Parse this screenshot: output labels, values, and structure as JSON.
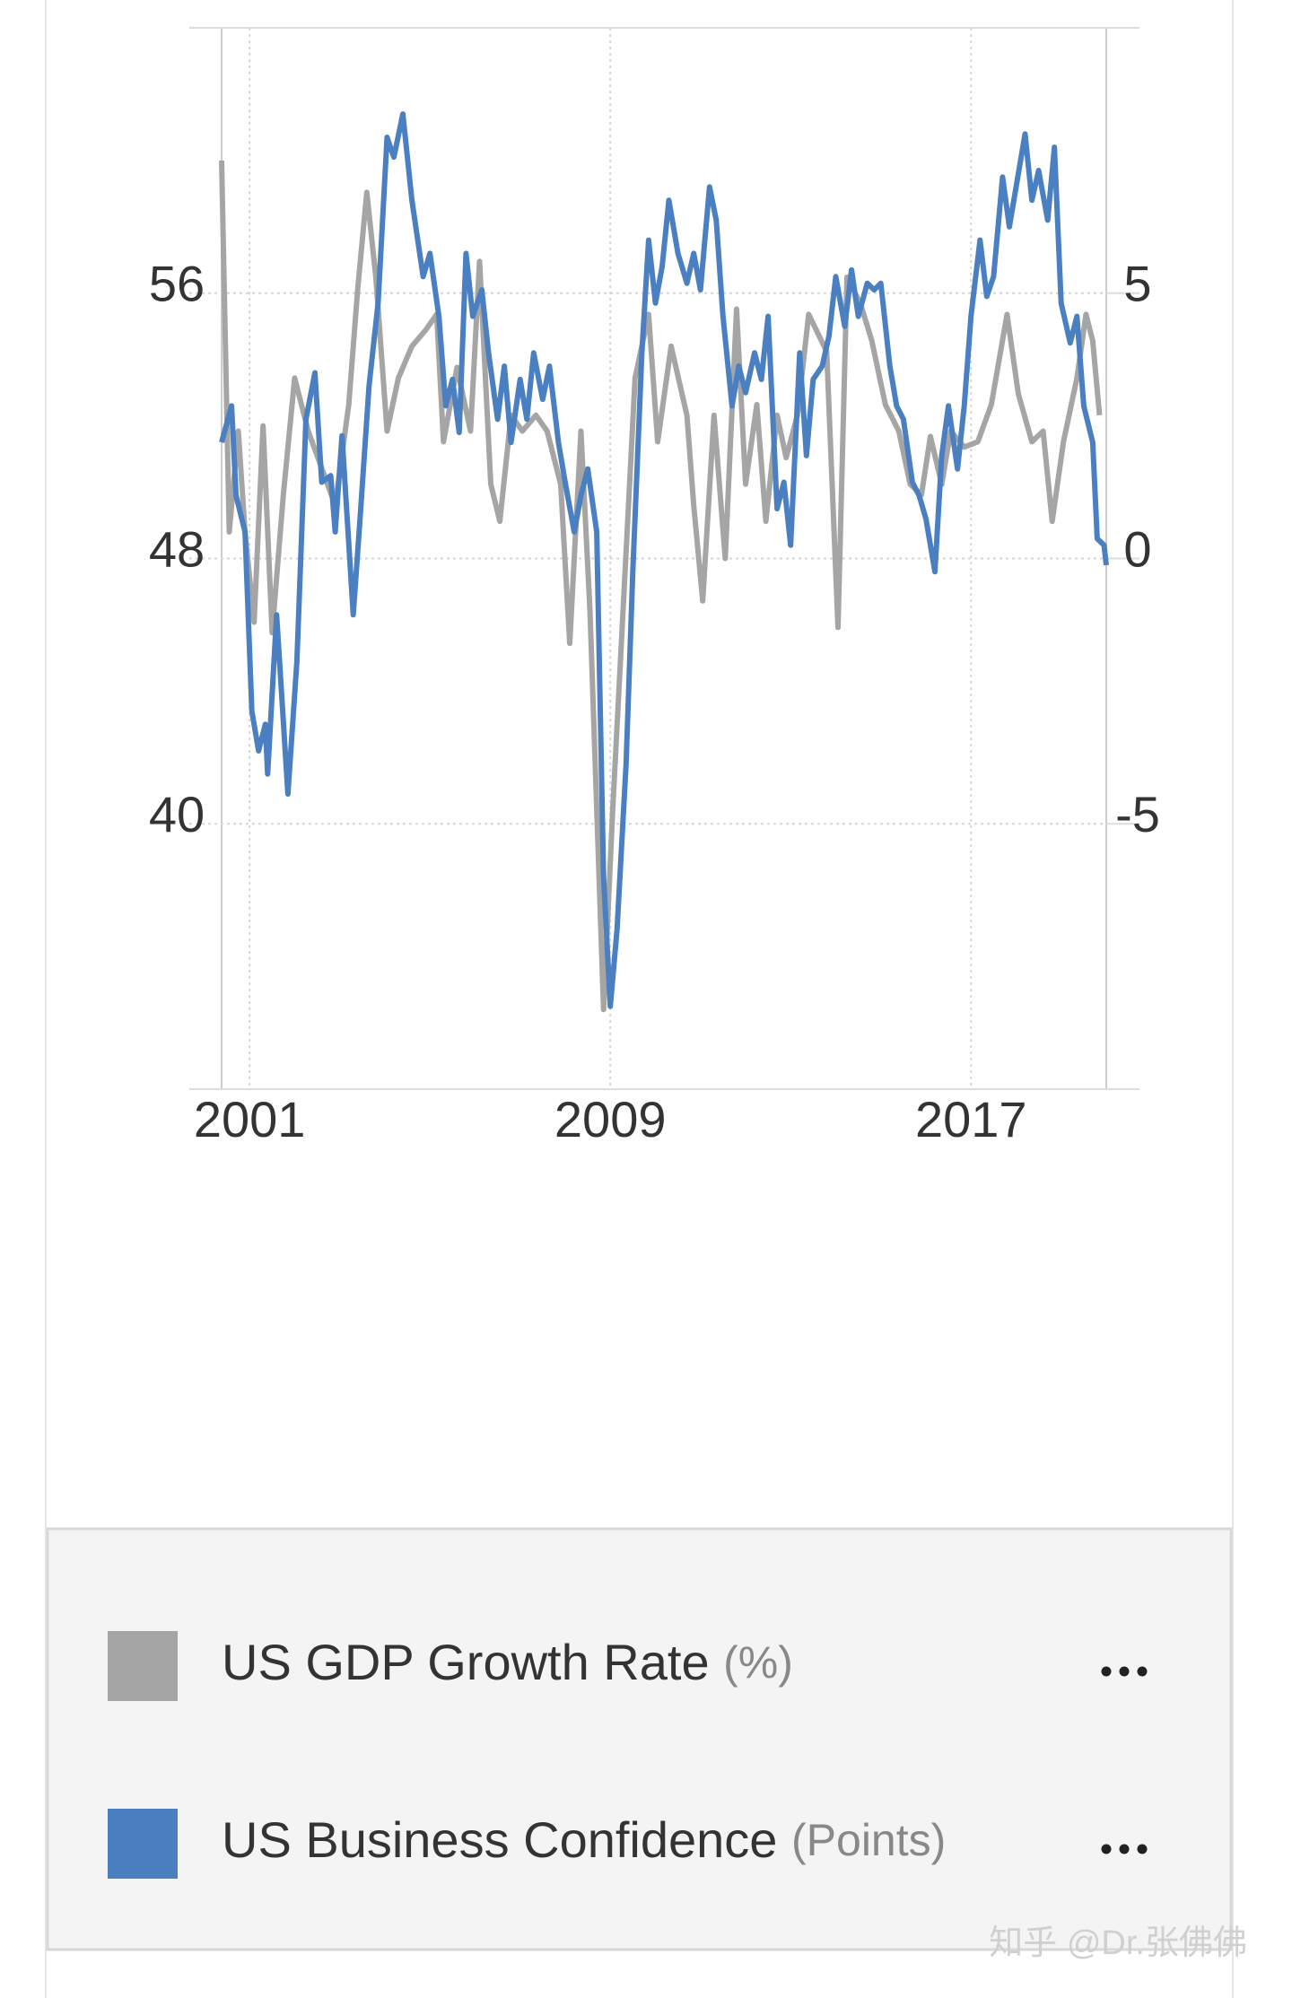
{
  "chart_data": {
    "type": "line",
    "xlim": [
      2000.38,
      2020.0
    ],
    "xticks": [
      2001,
      2009,
      2017
    ],
    "ylim": [
      32,
      64
    ],
    "yticks": [
      40,
      48,
      56
    ],
    "y2lim": [
      -10,
      10
    ],
    "y2ticks": [
      -5,
      0,
      5
    ],
    "grid": true,
    "series": [
      {
        "name": "US GDP Growth Rate",
        "unit": "(%)",
        "color": "#a5a5a5",
        "axis": "y2",
        "x": [
          2000.38,
          2000.55,
          2000.75,
          2000.9,
          2001.1,
          2001.3,
          2001.5,
          2001.75,
          2002.0,
          2002.3,
          2002.6,
          2002.9,
          2003.2,
          2003.4,
          2003.6,
          2003.8,
          2004.05,
          2004.3,
          2004.6,
          2004.9,
          2005.15,
          2005.3,
          2005.6,
          2005.9,
          2006.1,
          2006.35,
          2006.55,
          2006.8,
          2007.05,
          2007.35,
          2007.6,
          2007.9,
          2008.1,
          2008.35,
          2008.55,
          2008.85,
          2009.05,
          2009.3,
          2009.55,
          2009.85,
          2010.05,
          2010.35,
          2010.7,
          2010.85,
          2011.05,
          2011.3,
          2011.55,
          2011.8,
          2012.0,
          2012.25,
          2012.45,
          2012.7,
          2012.9,
          2013.15,
          2013.4,
          2013.8,
          2014.05,
          2014.25,
          2014.55,
          2014.8,
          2015.1,
          2015.4,
          2015.65,
          2015.9,
          2016.1,
          2016.35,
          2016.55,
          2016.85,
          2017.15,
          2017.45,
          2017.8,
          2018.05,
          2018.35,
          2018.6,
          2018.8,
          2019.05,
          2019.35,
          2019.55,
          2019.7,
          2019.85
        ],
        "values": [
          7.5,
          0.5,
          2.4,
          0.5,
          -1.2,
          2.5,
          -1.4,
          1.2,
          3.4,
          2.4,
          1.7,
          1.0,
          2.9,
          5.1,
          6.9,
          5.3,
          2.4,
          3.4,
          4.0,
          4.3,
          4.6,
          2.2,
          3.6,
          2.4,
          5.6,
          1.4,
          0.7,
          2.7,
          2.4,
          2.7,
          2.4,
          1.4,
          -1.6,
          2.4,
          -1.0,
          -8.5,
          -4.8,
          -0.7,
          3.4,
          4.6,
          2.2,
          4.0,
          2.7,
          1.0,
          -0.8,
          2.7,
          0,
          4.7,
          1.4,
          2.9,
          0.7,
          2.7,
          1.9,
          2.7,
          4.6,
          3.9,
          -1.3,
          5.3,
          4.8,
          4.1,
          2.9,
          2.4,
          1.4,
          1.2,
          2.3,
          1.4,
          2.4,
          2.1,
          2.2,
          2.9,
          4.6,
          3.1,
          2.2,
          2.4,
          0.7,
          2.2,
          3.4,
          4.6,
          4.1,
          2.7
        ]
      },
      {
        "name": "US Business Confidence",
        "unit": "(Points)",
        "color": "#4a7fc1",
        "axis": "y",
        "x": [
          2000.38,
          2000.6,
          2000.7,
          2000.9,
          2001.05,
          2001.2,
          2001.35,
          2001.4,
          2001.6,
          2001.85,
          2002.05,
          2002.25,
          2002.45,
          2002.6,
          2002.8,
          2002.9,
          2003.05,
          2003.3,
          2003.45,
          2003.65,
          2003.85,
          2004.05,
          2004.2,
          2004.4,
          2004.6,
          2004.85,
          2005.0,
          2005.2,
          2005.35,
          2005.5,
          2005.65,
          2005.8,
          2005.95,
          2006.15,
          2006.3,
          2006.5,
          2006.65,
          2006.8,
          2007.0,
          2007.15,
          2007.3,
          2007.5,
          2007.65,
          2007.85,
          2008.0,
          2008.2,
          2008.35,
          2008.5,
          2008.7,
          2008.85,
          2009.0,
          2009.15,
          2009.35,
          2009.5,
          2009.7,
          2009.85,
          2010.0,
          2010.15,
          2010.3,
          2010.5,
          2010.7,
          2010.85,
          2011.0,
          2011.2,
          2011.35,
          2011.5,
          2011.7,
          2011.85,
          2012.0,
          2012.2,
          2012.35,
          2012.5,
          2012.7,
          2012.85,
          2013.0,
          2013.2,
          2013.35,
          2013.5,
          2013.7,
          2013.85,
          2014.0,
          2014.2,
          2014.35,
          2014.5,
          2014.7,
          2014.85,
          2015.0,
          2015.2,
          2015.35,
          2015.5,
          2015.7,
          2015.85,
          2016.0,
          2016.2,
          2016.35,
          2016.5,
          2016.7,
          2016.85,
          2017.0,
          2017.2,
          2017.35,
          2017.5,
          2017.7,
          2017.85,
          2018.0,
          2018.2,
          2018.35,
          2018.5,
          2018.7,
          2018.85,
          2019.0,
          2019.2,
          2019.35,
          2019.5,
          2019.7,
          2019.8,
          2019.95,
          2020.0
        ],
        "values": [
          51.5,
          52.6,
          49.9,
          48.8,
          43.4,
          42.2,
          43,
          41.5,
          46.3,
          40.9,
          44.9,
          52.2,
          53.6,
          50.3,
          50.5,
          48.8,
          51.7,
          46.3,
          49.2,
          53.2,
          55.7,
          60.7,
          60.1,
          61.4,
          58.8,
          56.5,
          57.2,
          55.3,
          52.6,
          53.4,
          51.8,
          57.2,
          55.3,
          56.1,
          54.2,
          52.2,
          53.8,
          51.5,
          53.4,
          52.2,
          54.2,
          52.8,
          53.8,
          51.5,
          50.3,
          48.8,
          49.9,
          50.7,
          48.8,
          38.4,
          34.5,
          36.8,
          41.8,
          47.6,
          54.2,
          57.6,
          55.7,
          56.8,
          58.8,
          57.2,
          56.3,
          57.2,
          56.1,
          59.2,
          58.2,
          55.3,
          52.6,
          53.8,
          53,
          54.2,
          53.4,
          55.3,
          49.5,
          50.3,
          48.4,
          54.2,
          51.1,
          53.4,
          53.8,
          54.7,
          56.5,
          55,
          56.7,
          55.3,
          56.3,
          56.1,
          56.3,
          53.8,
          52.6,
          52.2,
          50.3,
          49.9,
          49.2,
          47.6,
          51.1,
          52.6,
          50.7,
          52.6,
          55.3,
          57.6,
          55.9,
          56.5,
          59.5,
          58,
          59.2,
          60.8,
          58.8,
          59.7,
          58.2,
          60.4,
          55.7,
          54.5,
          55.3,
          52.6,
          51.5,
          48.6,
          48.4,
          47.8
        ]
      }
    ]
  },
  "watermark": "知乎 @Dr.张佛佛"
}
